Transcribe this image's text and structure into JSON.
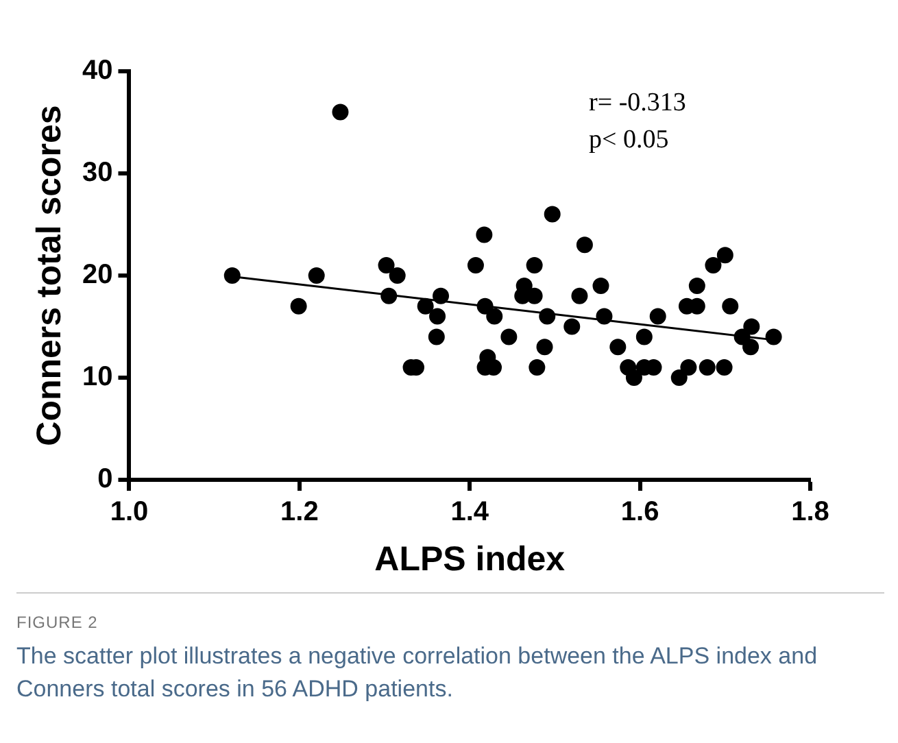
{
  "chart_data": {
    "type": "scatter",
    "xlabel": "ALPS index",
    "ylabel": "Conners total scores",
    "xlim": [
      1.0,
      1.8
    ],
    "xticks": [
      {
        "value": 1.0,
        "label": "1.0"
      },
      {
        "value": 1.2,
        "label": "1.2"
      },
      {
        "value": 1.4,
        "label": "1.4"
      },
      {
        "value": 1.6,
        "label": "1.6"
      },
      {
        "value": 1.8,
        "label": "1.8"
      }
    ],
    "ylim": [
      0,
      40
    ],
    "yticks": [
      0,
      10,
      20,
      30,
      40
    ],
    "grid": false,
    "legend": false,
    "marker": "circle",
    "series": [
      {
        "color": "#000000",
        "x": [
          1.121,
          1.248,
          1.22,
          1.199,
          1.302,
          1.315,
          1.305,
          1.348,
          1.366,
          1.362,
          1.361,
          1.331,
          1.337,
          1.407,
          1.417,
          1.418,
          1.429,
          1.421,
          1.418,
          1.428,
          1.446,
          1.479,
          1.488,
          1.491,
          1.476,
          1.464,
          1.462,
          1.476,
          1.497,
          1.52,
          1.529,
          1.535,
          1.554,
          1.558,
          1.574,
          1.586,
          1.593,
          1.605,
          1.605,
          1.616,
          1.621,
          1.646,
          1.657,
          1.655,
          1.667,
          1.667,
          1.679,
          1.686,
          1.7,
          1.699,
          1.706,
          1.72,
          1.731,
          1.73,
          1.757
        ],
        "values": [
          20,
          36,
          20,
          17,
          21,
          20,
          18,
          17,
          18,
          16,
          14,
          11,
          11,
          21,
          24,
          17,
          16,
          12,
          11,
          11,
          14,
          11,
          13,
          16,
          21,
          19,
          18,
          18,
          26,
          15,
          18,
          23,
          19,
          16,
          13,
          11,
          10,
          14,
          11,
          11,
          16,
          10,
          11,
          17,
          17,
          19,
          11,
          21,
          22,
          11,
          17,
          14,
          15,
          13,
          14
        ]
      },
      {
        "type": "line",
        "color": "#000000",
        "marker": "none",
        "x": [
          1.121,
          1.757
        ],
        "values": [
          19.9,
          13.7
        ]
      }
    ],
    "annotations": [
      "r= -0.313",
      "p< 0.05",
      "FIGURE 2",
      "The scatter plot illustrates a negative correlation between the ALPS index and Conners total scores in 56 ADHD patients."
    ]
  }
}
